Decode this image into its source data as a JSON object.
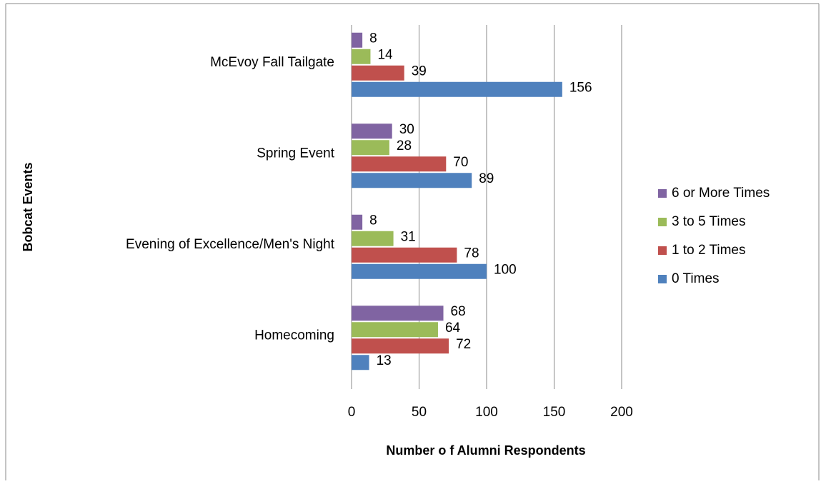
{
  "chart_data": {
    "type": "barh",
    "x_label": "Number o f Alumni Respondents",
    "y_label": "Bobcat Events",
    "categories": [
      "Homecoming",
      "Evening of Excellence/Men's Night",
      "Spring Event",
      "McEvoy Fall Tailgate"
    ],
    "series": [
      {
        "name": "0 Times",
        "color": "#4f81bd",
        "values": [
          13,
          100,
          89,
          156
        ]
      },
      {
        "name": "1 to 2 Times",
        "color": "#c0504d",
        "values": [
          72,
          78,
          70,
          39
        ]
      },
      {
        "name": "3 to 5 Times",
        "color": "#9bbb59",
        "values": [
          64,
          31,
          28,
          14
        ]
      },
      {
        "name": "6 or More Times",
        "color": "#8064a2",
        "values": [
          68,
          8,
          30,
          8
        ]
      }
    ],
    "xlim": [
      0,
      200
    ],
    "xticks": [
      0,
      50,
      100,
      150,
      200
    ],
    "grid": true,
    "legend": "right"
  }
}
